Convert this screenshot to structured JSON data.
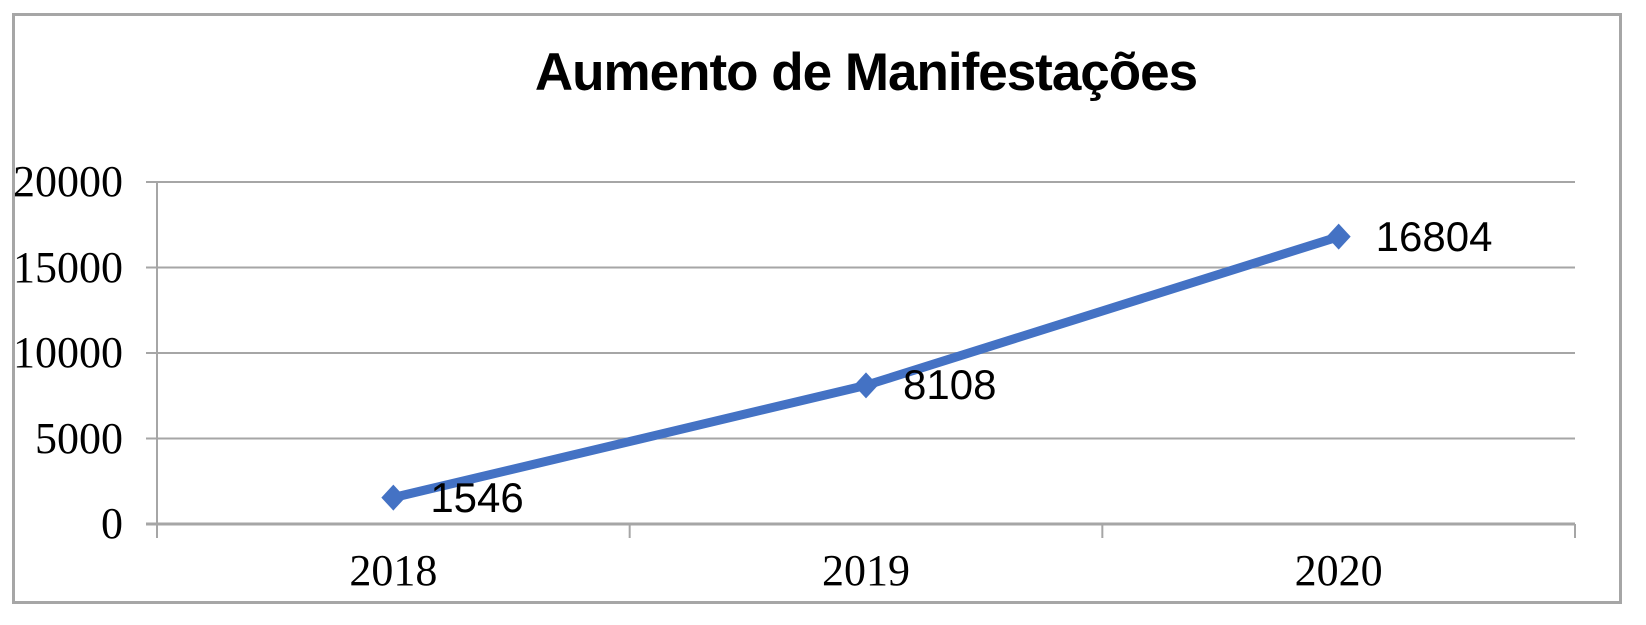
{
  "chart_data": {
    "type": "line",
    "title": "Aumento de Manifestações",
    "categories": [
      "2018",
      "2019",
      "2020"
    ],
    "values": [
      1546,
      8108,
      16804
    ],
    "data_labels": [
      "1546",
      "8108",
      "16804"
    ],
    "y_ticks": [
      0,
      5000,
      10000,
      15000,
      20000
    ],
    "y_tick_labels": [
      "0",
      "5000",
      "10000",
      "15000",
      "20000"
    ],
    "ylim": [
      0,
      20000
    ],
    "grid": true,
    "legend": false,
    "marker": "diamond",
    "data_label_position": "right",
    "colors": {
      "series": "#4472C4",
      "gridline": "#A6A6A6",
      "axis": "#A6A6A6",
      "frame_border": "#A6A6A6",
      "text": "#000000"
    }
  }
}
